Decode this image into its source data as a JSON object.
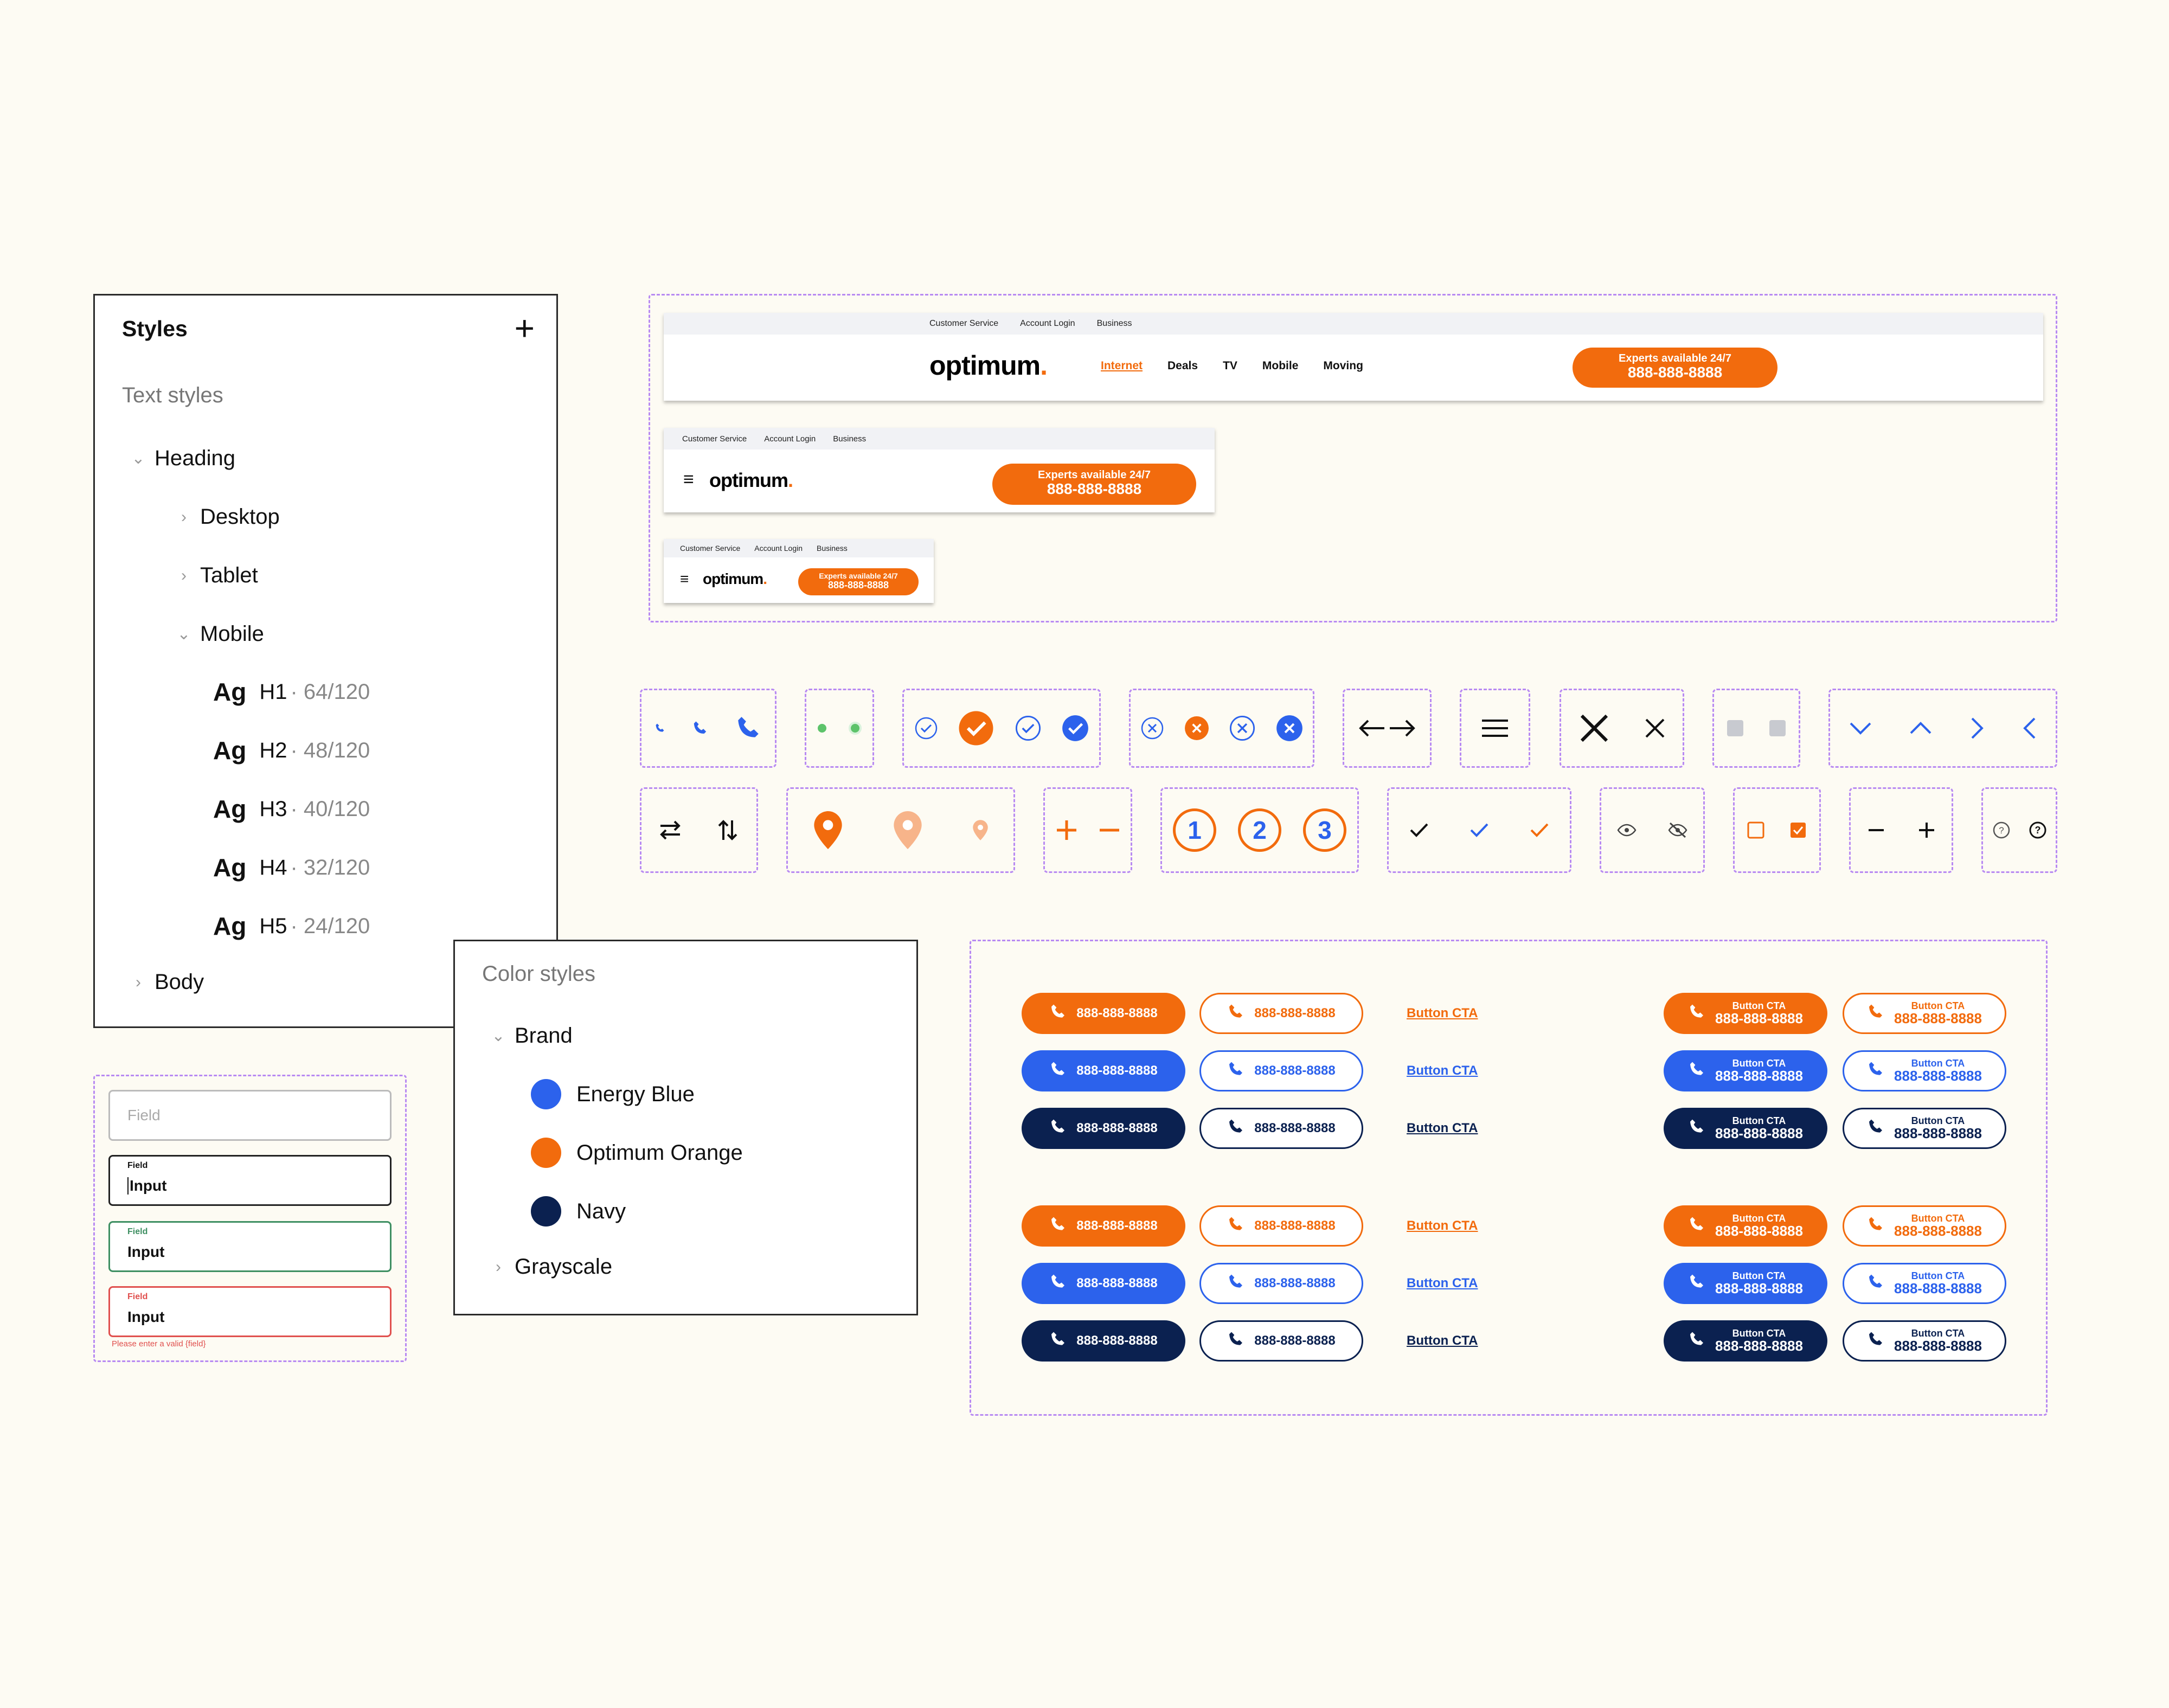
{
  "styles_panel": {
    "title": "Styles",
    "add_icon": "plus-icon",
    "section": "Text styles",
    "tree": {
      "heading": "Heading",
      "desktop": "Desktop",
      "tablet": "Tablet",
      "mobile": "Mobile",
      "body": "Body"
    },
    "sample": "Ag",
    "styles": [
      {
        "name": "H1",
        "size": "· 64/120"
      },
      {
        "name": "H2",
        "size": "· 48/120"
      },
      {
        "name": "H3",
        "size": "· 40/120"
      },
      {
        "name": "H4",
        "size": "· 32/120"
      },
      {
        "name": "H5",
        "size": "· 24/120"
      }
    ]
  },
  "color_panel": {
    "title": "Color styles",
    "group": "Brand",
    "colors": [
      {
        "name": "Energy Blue",
        "hex": "#2c62ec"
      },
      {
        "name": "Optimum Orange",
        "hex": "#f26b0d"
      },
      {
        "name": "Navy",
        "hex": "#0b2150"
      }
    ],
    "grayscale": "Grayscale"
  },
  "header": {
    "utility_links": [
      "Customer Service",
      "Account Login",
      "Business"
    ],
    "logo": "optimum",
    "logo_dot": ".",
    "nav": [
      "Internet",
      "Deals",
      "TV",
      "Mobile",
      "Moving"
    ],
    "cta_line1": "Experts available 24/7",
    "cta_line2": "888-888-8888",
    "menu_icon": "hamburger-icon"
  },
  "form": {
    "placeholder": "Field",
    "label": "Field",
    "value": "Input",
    "error": "Please enter a valid {field}"
  },
  "buttons": {
    "phone": "888-888-8888",
    "link": "Button CTA",
    "cta_small": "Button CTA",
    "cta_number": "888-888-8888"
  },
  "colors": {
    "orange": "#f26b0d",
    "blue": "#2c62ec",
    "navy": "#0b2150",
    "accent_dash": "#b88af2",
    "green": "#5dc36a",
    "error": "#e0504e",
    "success": "#3e8f62"
  },
  "icons": [
    "phone-icon",
    "status-dot-icon",
    "check-circle-icon",
    "close-circle-icon",
    "double-arrow-icon",
    "menu-icon",
    "close-icon",
    "checkbox-grey-icon",
    "chevron-icon",
    "swap-horizontal-icon",
    "swap-vertical-icon",
    "map-pin-icon",
    "plus-icon",
    "minus-icon",
    "step-number-icon",
    "check-icon",
    "eye-icon",
    "eye-off-icon",
    "checkbox-icon",
    "help-icon"
  ],
  "steps": [
    "1",
    "2",
    "3"
  ]
}
